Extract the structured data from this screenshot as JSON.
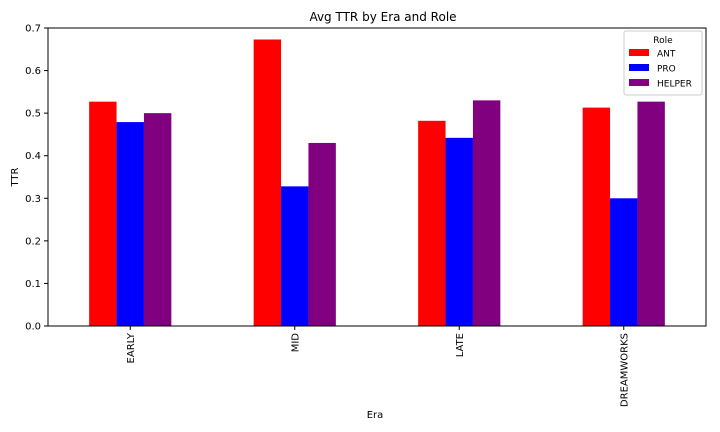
{
  "chart_data": {
    "type": "bar",
    "title": "Avg TTR by Era and Role",
    "xlabel": "Era",
    "ylabel": "TTR",
    "categories": [
      "EARLY",
      "MID",
      "LATE",
      "DREAMWORKS"
    ],
    "series": [
      {
        "name": "ANT",
        "color": "#ff0000",
        "values": [
          0.527,
          0.673,
          0.482,
          0.513
        ]
      },
      {
        "name": "PRO",
        "color": "#0000ff",
        "values": [
          0.479,
          0.328,
          0.442,
          0.3
        ]
      },
      {
        "name": "HELPER",
        "color": "#800080",
        "values": [
          0.5,
          0.43,
          0.53,
          0.527
        ]
      }
    ],
    "ylim": [
      0,
      0.7
    ],
    "yticks": [
      "0.0",
      "0.1",
      "0.2",
      "0.3",
      "0.4",
      "0.5",
      "0.6",
      "0.7"
    ],
    "legend": {
      "title": "Role",
      "position": "top-right"
    },
    "grid": false
  }
}
